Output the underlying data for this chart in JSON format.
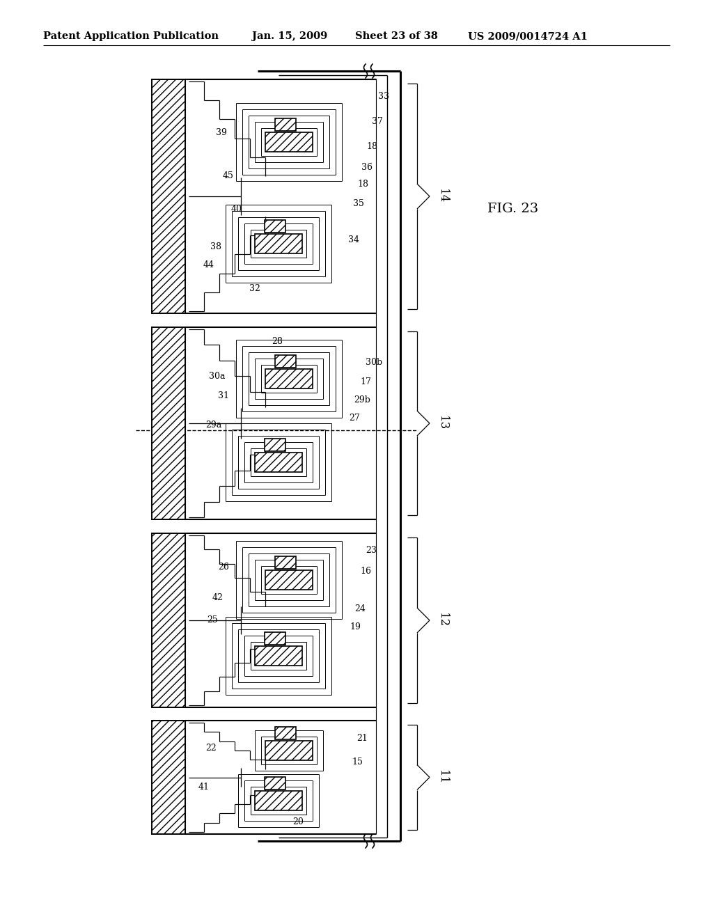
{
  "bg_color": "#ffffff",
  "header_text": "Patent Application Publication",
  "header_date": "Jan. 15, 2009",
  "header_sheet": "Sheet 23 of 38",
  "header_patent": "US 2009/0014724 A1",
  "fig_label": "FIG. 23",
  "header_fontsize": 10.5,
  "fig_fontsize": 14,
  "label_fontsize": 9
}
